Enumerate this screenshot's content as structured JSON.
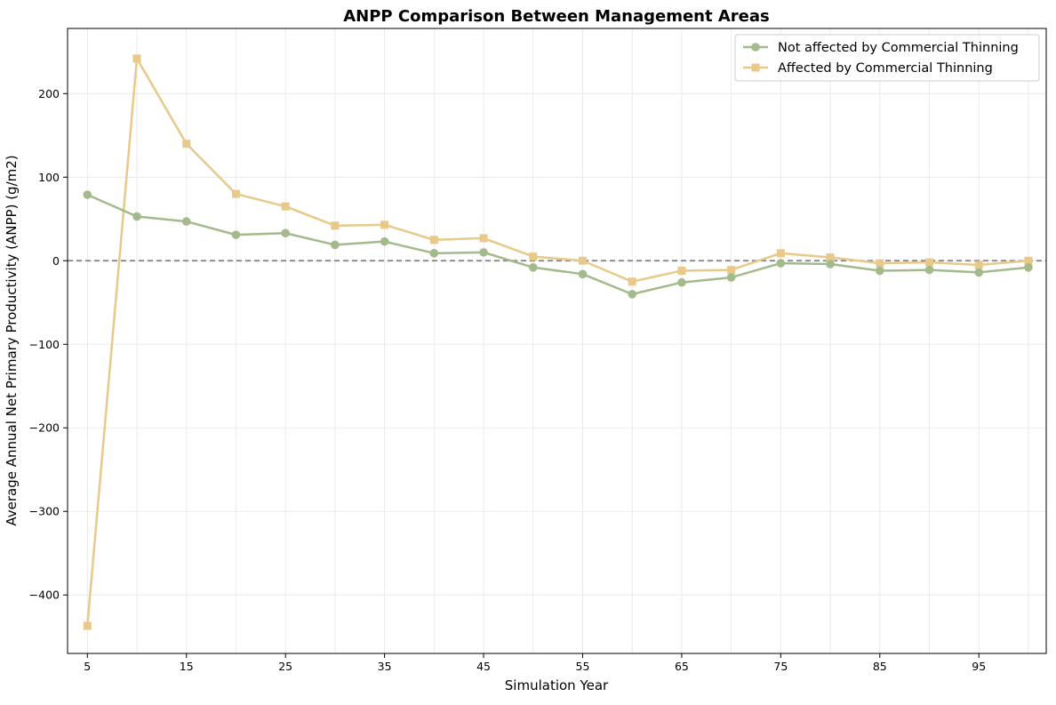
{
  "chart_data": {
    "type": "line",
    "title": "ANPP Comparison Between Management Areas",
    "xlabel": "Simulation Year",
    "ylabel": "Average Annual Net Primary Productivity (ANPP) (g/m2)",
    "xlim": [
      3,
      101.8
    ],
    "ylim": [
      -470,
      278
    ],
    "xticks": [
      5,
      15,
      25,
      35,
      45,
      55,
      65,
      75,
      85,
      95
    ],
    "yticks": [
      -400,
      -300,
      -200,
      -100,
      0,
      100,
      200
    ],
    "grid": true,
    "legend_position": "top-right",
    "reference_line": {
      "y": 0,
      "style": "dashed",
      "color": "#808080"
    },
    "x": [
      5,
      10,
      15,
      20,
      25,
      30,
      35,
      40,
      45,
      50,
      55,
      60,
      65,
      70,
      75,
      80,
      85,
      90,
      95,
      100
    ],
    "series": [
      {
        "name": "Not affected by Commercial Thinning",
        "color": "#a3bb8c",
        "marker": "circle",
        "values": [
          79,
          53,
          47,
          31,
          33,
          19,
          23,
          9,
          10,
          -8,
          -16,
          -40,
          -26,
          -20,
          -3,
          -4,
          -12,
          -11,
          -14,
          -8
        ]
      },
      {
        "name": "Affected by Commercial Thinning",
        "color": "#e8c98a",
        "marker": "square",
        "values": [
          -437,
          242,
          140,
          80,
          65,
          42,
          43,
          25,
          27,
          5,
          0,
          -25,
          -12,
          -11,
          9,
          4,
          -3,
          -2,
          -5,
          0
        ]
      }
    ]
  }
}
